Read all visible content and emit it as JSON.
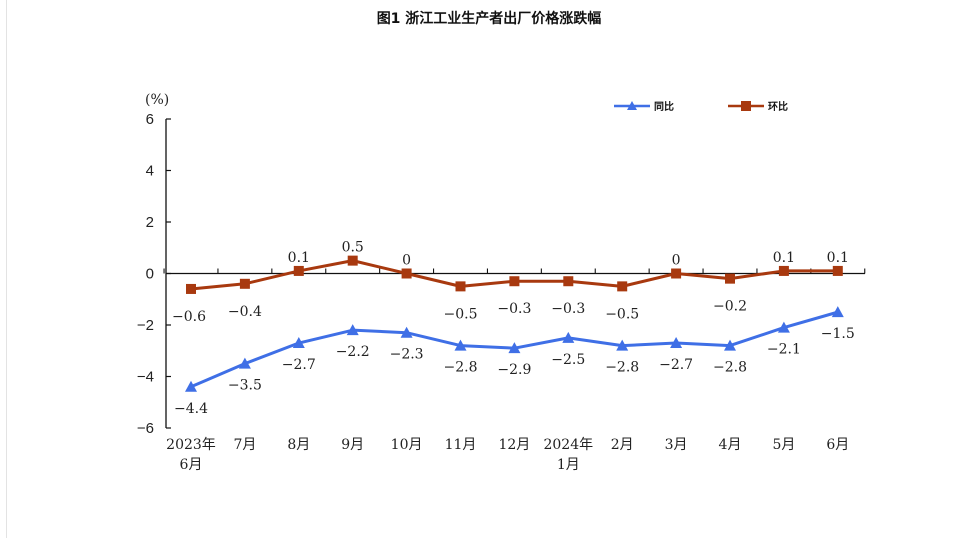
{
  "chart_data": {
    "type": "line",
    "title": "图1 浙江工业生产者出厂价格涨跌幅",
    "ylabel": "(%)",
    "ylim": [
      -6,
      6
    ],
    "yticks": [
      "6",
      "4",
      "2",
      "0",
      "−2",
      "−4",
      "−6"
    ],
    "categories": [
      [
        "2023年",
        "6月"
      ],
      [
        "7月"
      ],
      [
        "8月"
      ],
      [
        "9月"
      ],
      [
        "10月"
      ],
      [
        "11月"
      ],
      [
        "12月"
      ],
      [
        "2024年",
        "1月"
      ],
      [
        "2月"
      ],
      [
        "3月"
      ],
      [
        "4月"
      ],
      [
        "5月"
      ],
      [
        "6月"
      ]
    ],
    "series": [
      {
        "name": "同比",
        "color": "#3f6fe6",
        "marker": "triangle",
        "values": [
          -4.4,
          -3.5,
          -2.7,
          -2.2,
          -2.3,
          -2.8,
          -2.9,
          -2.5,
          -2.8,
          -2.7,
          -2.8,
          -2.1,
          -1.5
        ],
        "labels": [
          "−4.4",
          "−3.5",
          "−2.7",
          "−2.2",
          "−2.3",
          "−2.8",
          "−2.9",
          "−2.5",
          "−2.8",
          "−2.7",
          "−2.8",
          "−2.1",
          "−1.5"
        ]
      },
      {
        "name": "环比",
        "color": "#a8390f",
        "marker": "square",
        "values": [
          -0.6,
          -0.4,
          0.1,
          0.5,
          0,
          -0.5,
          -0.3,
          -0.3,
          -0.5,
          0,
          -0.2,
          0.1,
          0.1
        ],
        "labels": [
          "−0.6",
          "−0.4",
          "0.1",
          "0.5",
          "0",
          "−0.5",
          "−0.3",
          "−0.3",
          "−0.5",
          "0",
          "−0.2",
          "0.1",
          "0.1"
        ]
      }
    ],
    "legend": "top-right",
    "grid": false
  }
}
